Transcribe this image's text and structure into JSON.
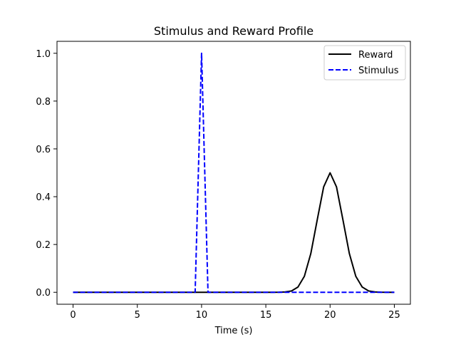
{
  "chart_data": {
    "type": "line",
    "title": "Stimulus and Reward Profile",
    "xlabel": "Time (s)",
    "ylabel": "",
    "xlim": [
      -1.25,
      26.25
    ],
    "ylim": [
      -0.05,
      1.05
    ],
    "xticks": [
      0,
      5,
      10,
      15,
      20,
      25
    ],
    "yticks": [
      0.0,
      0.2,
      0.4,
      0.6,
      0.8,
      1.0
    ],
    "xtick_labels": [
      "0",
      "5",
      "10",
      "15",
      "20",
      "25"
    ],
    "ytick_labels": [
      "0.0",
      "0.2",
      "0.4",
      "0.6",
      "0.8",
      "1.0"
    ],
    "grid": false,
    "legend_position": "top-right",
    "series": [
      {
        "name": "Reward",
        "color": "#000000",
        "style": "solid",
        "x": [
          0,
          0.5,
          1,
          1.5,
          2,
          2.5,
          3,
          3.5,
          4,
          4.5,
          5,
          5.5,
          6,
          6.5,
          7,
          7.5,
          8,
          8.5,
          9,
          9.5,
          10,
          10.5,
          11,
          11.5,
          12,
          12.5,
          13,
          13.5,
          14,
          14.5,
          15,
          15.5,
          16,
          16.5,
          17,
          17.5,
          18,
          18.5,
          19,
          19.5,
          20,
          20.5,
          21,
          21.5,
          22,
          22.5,
          23,
          23.5,
          24,
          24.5,
          25
        ],
        "y": [
          0,
          0,
          0,
          0,
          0,
          0,
          0,
          0,
          0,
          0,
          0,
          0,
          0,
          0,
          0,
          0,
          0,
          0,
          0,
          0,
          0,
          0,
          0,
          0,
          0,
          0,
          0,
          0,
          0,
          0,
          0,
          0,
          0.0002,
          0.0015,
          0.0055,
          0.022,
          0.067,
          0.162,
          0.303,
          0.441,
          0.5,
          0.441,
          0.303,
          0.162,
          0.067,
          0.022,
          0.0055,
          0.0015,
          0.0002,
          0,
          0
        ]
      },
      {
        "name": "Stimulus",
        "color": "#0000ff",
        "style": "dashed",
        "x": [
          0,
          9.5,
          10,
          10.5,
          25
        ],
        "y": [
          0,
          0,
          1.0,
          0,
          0
        ]
      }
    ]
  }
}
